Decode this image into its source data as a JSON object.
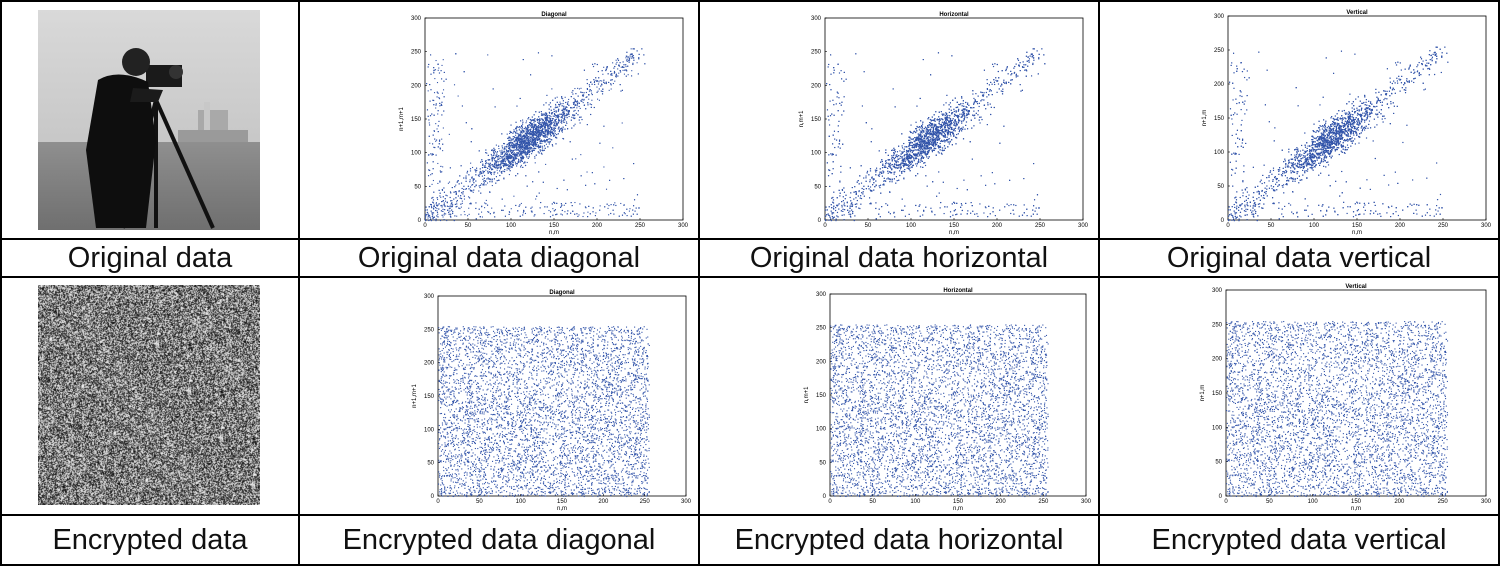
{
  "labels": {
    "r1": [
      "Original data",
      "Original data diagonal",
      "Original data horizontal",
      "Original data vertical"
    ],
    "r2": [
      "Encrypted data",
      "Encrypted data diagonal",
      "Encrypted data horizontal",
      "Encrypted data vertical"
    ]
  },
  "colors": {
    "points": "#3355aa",
    "axis": "#000000"
  },
  "chart_data": [
    {
      "type": "scatter",
      "title": "Diagonal",
      "xlabel": "n,m",
      "ylabel": "n+1,m+1",
      "xlim": [
        0,
        300
      ],
      "ylim": [
        0,
        300
      ],
      "xticks": [
        0,
        50,
        100,
        150,
        200,
        250,
        300
      ],
      "yticks": [
        0,
        50,
        100,
        150,
        200,
        250,
        300
      ],
      "distribution": "correlated",
      "points_spread": "clustered along y=x, dense core around (120,120), range 0-255"
    },
    {
      "type": "scatter",
      "title": "Horizontal",
      "xlabel": "n,m",
      "ylabel": "n,m+1",
      "xlim": [
        0,
        300
      ],
      "ylim": [
        0,
        300
      ],
      "xticks": [
        0,
        50,
        100,
        150,
        200,
        250,
        300
      ],
      "yticks": [
        0,
        50,
        100,
        150,
        200,
        250,
        300
      ],
      "distribution": "correlated",
      "points_spread": "clustered along y=x, dense core around (120,120), range 0-255"
    },
    {
      "type": "scatter",
      "title": "Vertical",
      "xlabel": "n,m",
      "ylabel": "n+1,m",
      "xlim": [
        0,
        300
      ],
      "ylim": [
        0,
        300
      ],
      "xticks": [
        0,
        50,
        100,
        150,
        200,
        250,
        300
      ],
      "yticks": [
        0,
        50,
        100,
        150,
        200,
        250,
        300
      ],
      "distribution": "correlated",
      "points_spread": "clustered along y=x, dense core around (120,120), range 0-255"
    },
    {
      "type": "scatter",
      "title": "Diagonal",
      "xlabel": "n,m",
      "ylabel": "n+1,m+1",
      "xlim": [
        0,
        300
      ],
      "ylim": [
        0,
        300
      ],
      "xticks": [
        0,
        50,
        100,
        150,
        200,
        250,
        300
      ],
      "yticks": [
        0,
        50,
        100,
        150,
        200,
        250,
        300
      ],
      "distribution": "uniform",
      "points_spread": "uniform over 0-255 on both axes"
    },
    {
      "type": "scatter",
      "title": "Horizontal",
      "xlabel": "n,m",
      "ylabel": "n,m+1",
      "xlim": [
        0,
        300
      ],
      "ylim": [
        0,
        300
      ],
      "xticks": [
        0,
        50,
        100,
        150,
        200,
        250,
        300
      ],
      "yticks": [
        0,
        50,
        100,
        150,
        200,
        250,
        300
      ],
      "distribution": "uniform",
      "points_spread": "uniform over 0-255 on both axes"
    },
    {
      "type": "scatter",
      "title": "Vertical",
      "xlabel": "n,m",
      "ylabel": "n+1,m",
      "xlim": [
        0,
        300
      ],
      "ylim": [
        0,
        300
      ],
      "xticks": [
        0,
        50,
        100,
        150,
        200,
        250,
        300
      ],
      "yticks": [
        0,
        50,
        100,
        150,
        200,
        250,
        300
      ],
      "distribution": "uniform",
      "points_spread": "uniform over 0-255 on both axes"
    }
  ]
}
